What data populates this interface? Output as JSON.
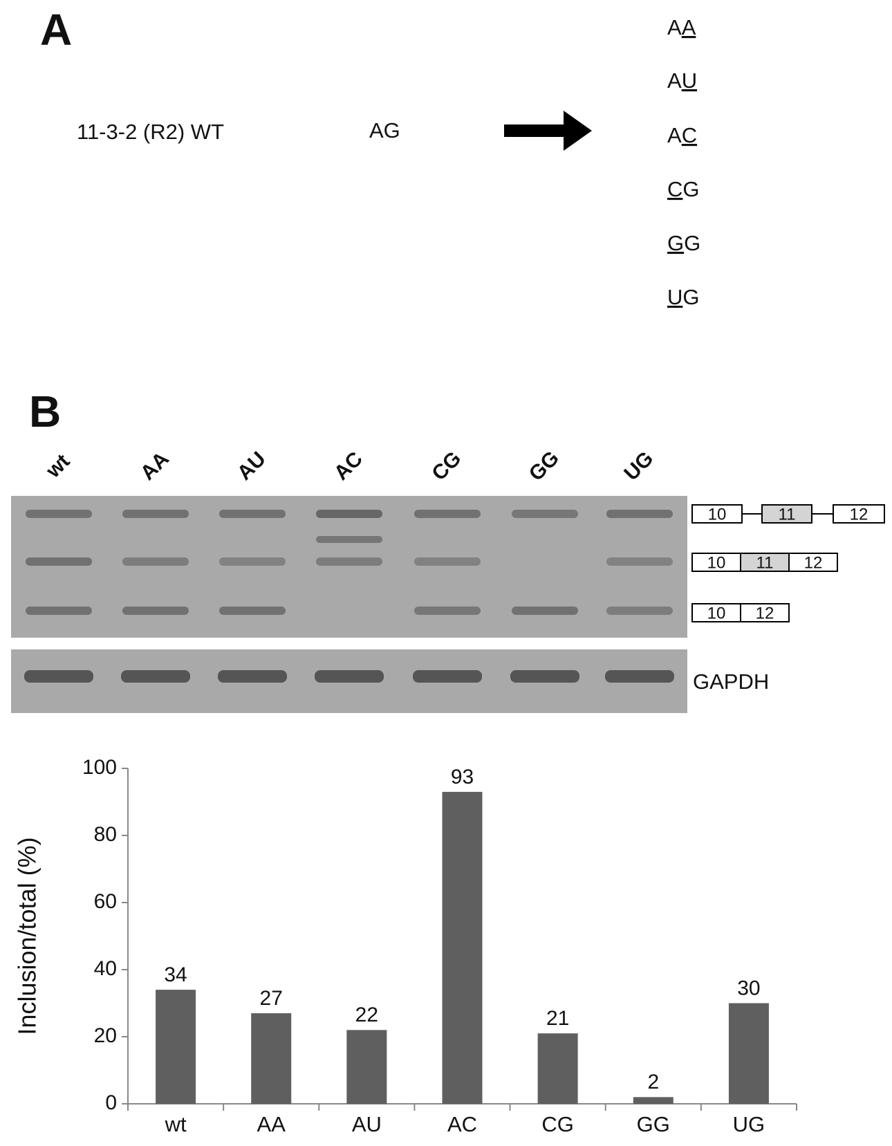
{
  "panel_a": {
    "label": "A",
    "construct": "11-3-2 (R2) WT",
    "wild_type": "AG",
    "mutants": [
      {
        "before": "A",
        "changed": "A"
      },
      {
        "before": "A",
        "changed": "U"
      },
      {
        "before": "A",
        "changed": "C"
      },
      {
        "changed": "C",
        "after": "G"
      },
      {
        "changed": "G",
        "after": "G"
      },
      {
        "changed": "U",
        "after": "G"
      }
    ]
  },
  "panel_b": {
    "label": "B",
    "lanes": [
      "wt",
      "AA",
      "AU",
      "AC",
      "CG",
      "GG",
      "UG"
    ],
    "isoforms": [
      {
        "exons": [
          "10",
          "11",
          "12"
        ]
      },
      {
        "exons": [
          "10",
          "11",
          "12"
        ]
      },
      {
        "exons": [
          "10",
          "12"
        ]
      }
    ],
    "loading_control": "GAPDH"
  },
  "chart_data": {
    "type": "bar",
    "categories": [
      "wt",
      "AA",
      "AU",
      "AC",
      "CG",
      "GG",
      "UG"
    ],
    "values": [
      34,
      27,
      22,
      93,
      21,
      2,
      30
    ],
    "color": "#5f5f5f",
    "ylabel": "Inclusion/total (%)",
    "ylim": [
      0,
      100
    ],
    "yticks": [
      0,
      20,
      40,
      60,
      80,
      100
    ]
  }
}
